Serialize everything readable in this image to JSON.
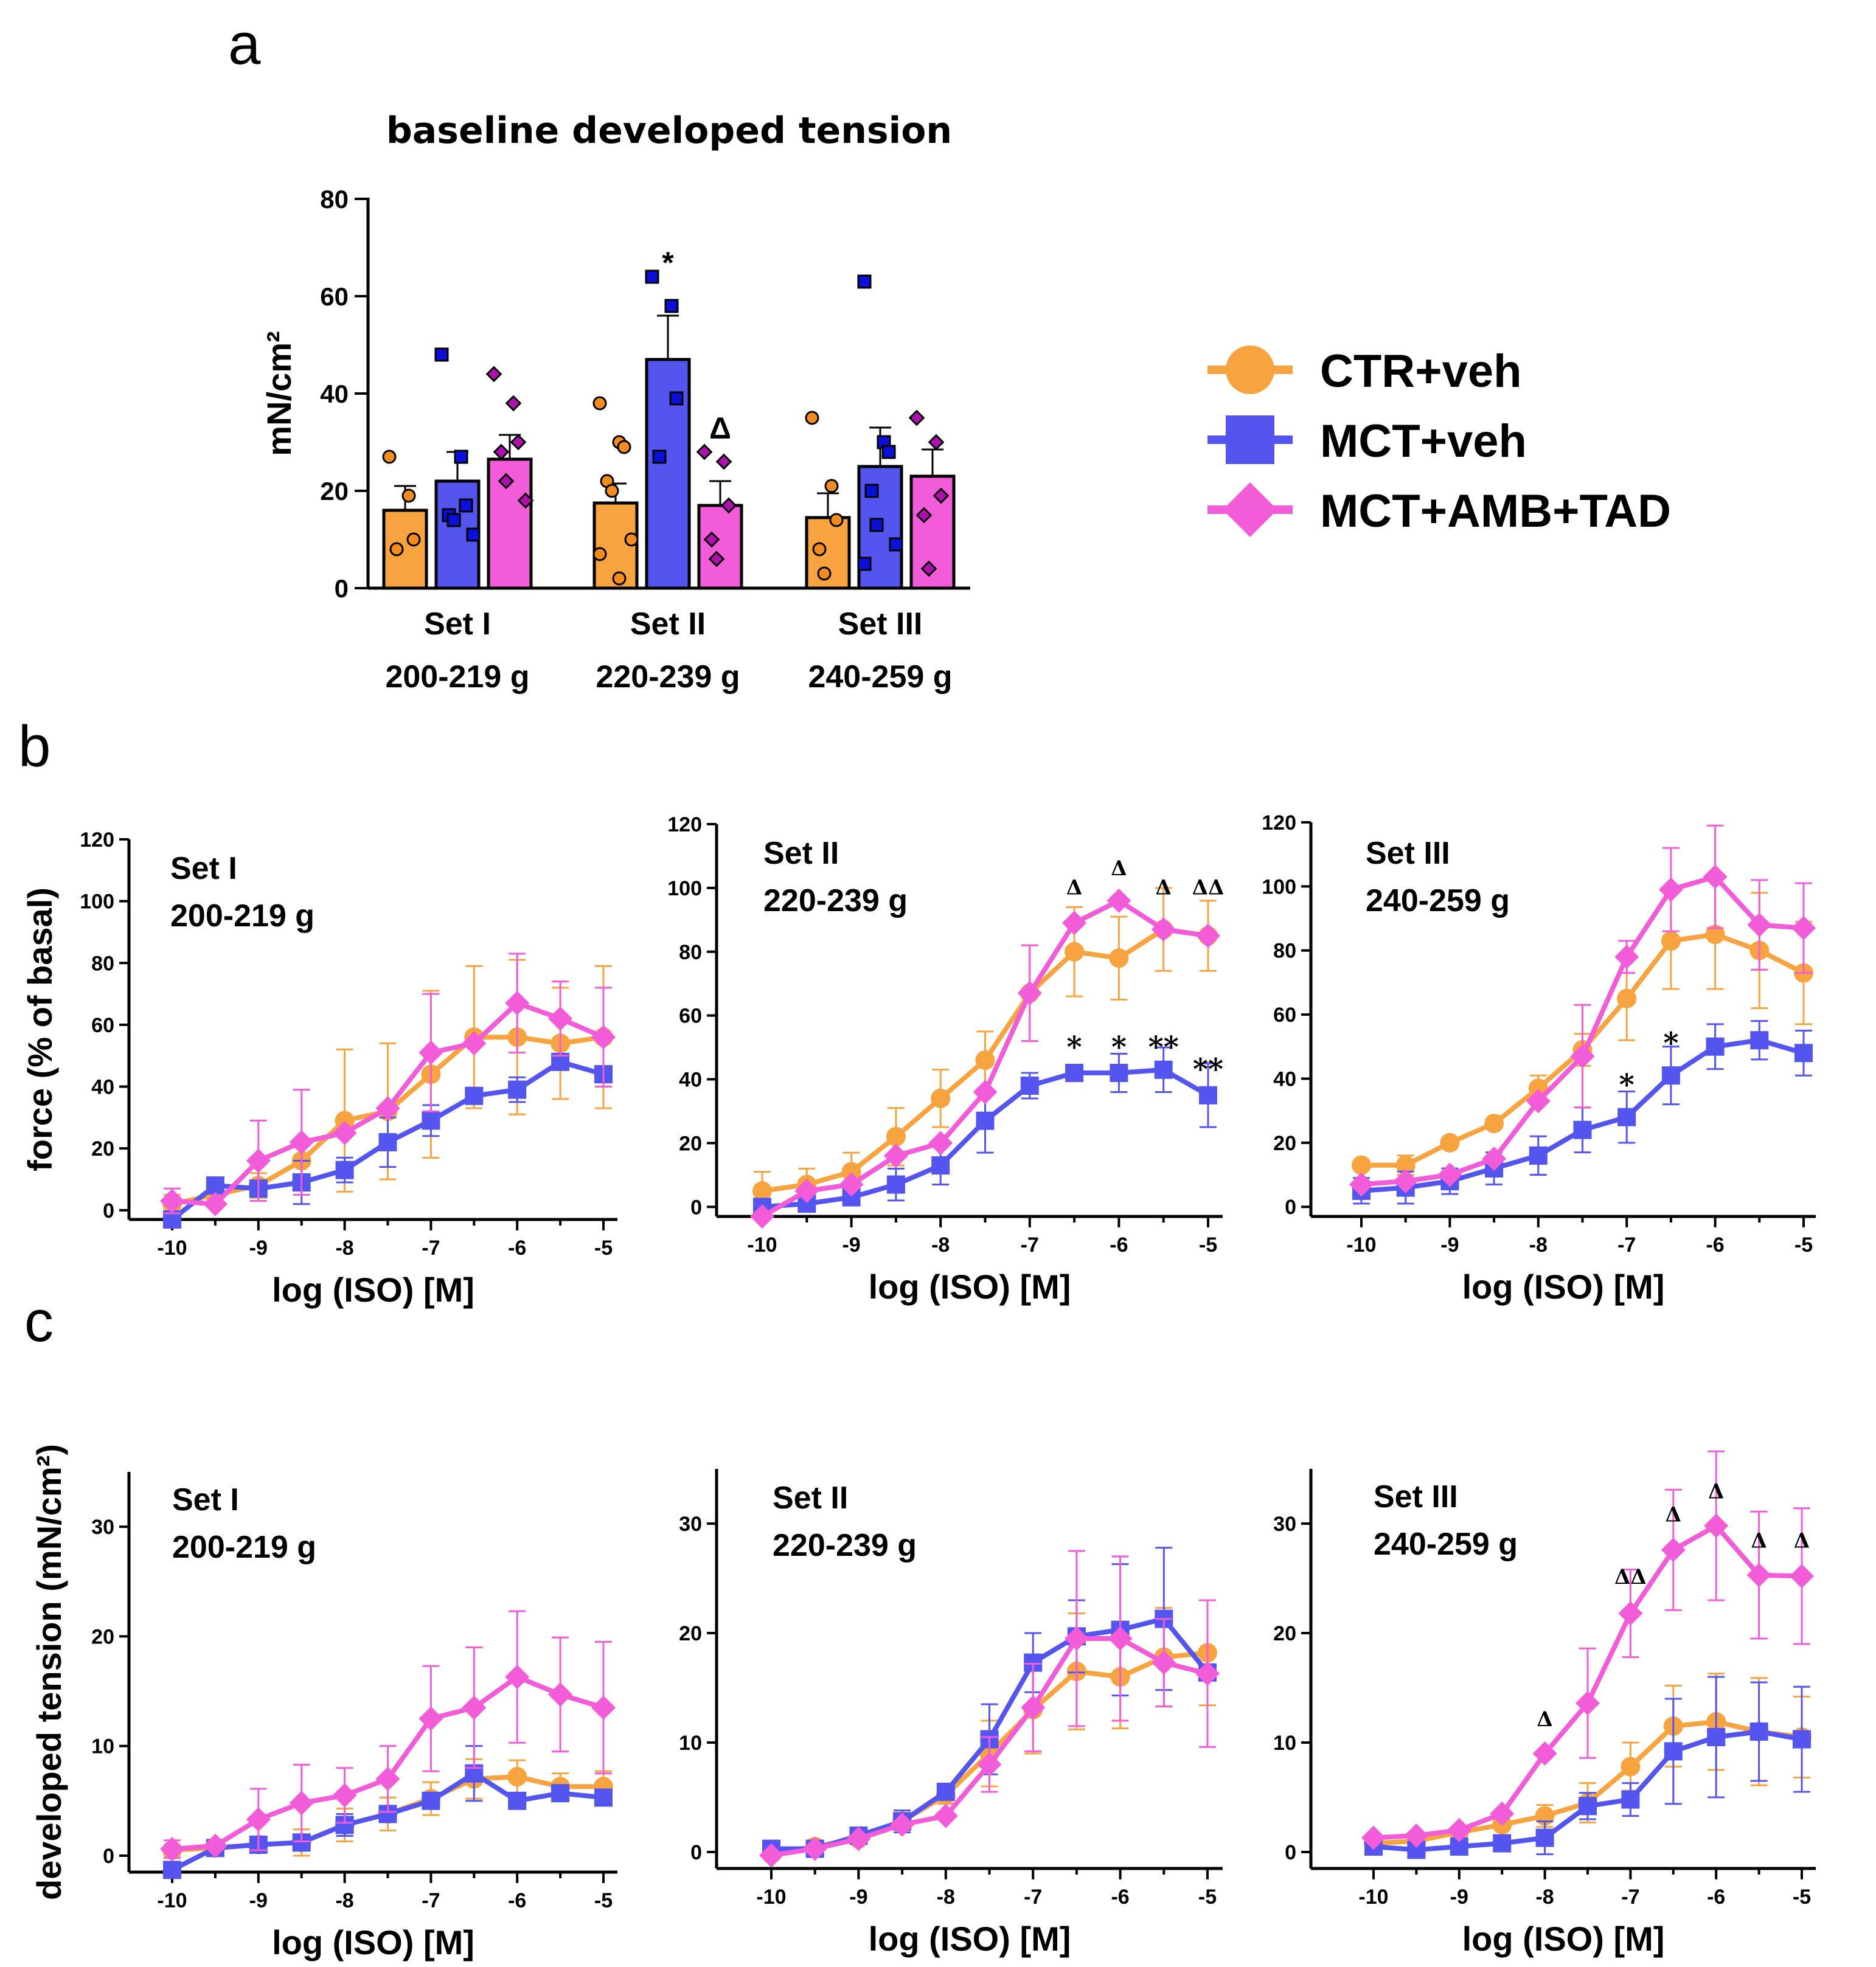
{
  "panels": {
    "a": "a",
    "b": "b",
    "c": "c"
  },
  "colors": {
    "ctr": "#F7A440",
    "mct": "#5454EE",
    "amb": "#F25CD9",
    "ctr_marker": "#F28C1E",
    "mct_marker": "#0A10D8",
    "amb_marker": "#B010B0"
  },
  "legend": [
    {
      "label": "CTR+veh",
      "marker": "circle",
      "color": "#F7A440"
    },
    {
      "label": "MCT+veh",
      "marker": "square",
      "color": "#5454EE"
    },
    {
      "label": "MCT+AMB+TAD",
      "marker": "diamond",
      "color": "#F25CD9"
    }
  ],
  "chart_data": [
    {
      "id": "a",
      "type": "bar",
      "title": "baseline developed tension",
      "ylabel": "mN/cm²",
      "ylim": [
        0,
        80
      ],
      "yticks": [
        0,
        20,
        40,
        60,
        80
      ],
      "groups": [
        {
          "line1": "Set I",
          "line2": "200-219 g"
        },
        {
          "line1": "Set II",
          "line2": "220-239 g"
        },
        {
          "line1": "Set III",
          "line2": "240-259 g"
        }
      ],
      "series": [
        {
          "name": "CTR+veh",
          "values": [
            16,
            17.5,
            14.5
          ],
          "sem": [
            5,
            4,
            5
          ],
          "points": [
            [
              27,
              19,
              10,
              8
            ],
            [
              38,
              30,
              29,
              22,
              20,
              10,
              7,
              2
            ],
            [
              35,
              21,
              14,
              8,
              3
            ]
          ]
        },
        {
          "name": "MCT+veh",
          "values": [
            22,
            47,
            25
          ],
          "sem": [
            6,
            9,
            8
          ],
          "points": [
            [
              48,
              27,
              17,
              15,
              14,
              11
            ],
            [
              64,
              58,
              39,
              27
            ],
            [
              63,
              30,
              28,
              20,
              13,
              9,
              5
            ]
          ]
        },
        {
          "name": "MCT+AMB+TAD",
          "values": [
            26.5,
            17,
            23
          ],
          "sem": [
            5,
            5,
            5.5
          ],
          "points": [
            [
              44,
              38,
              30,
              28,
              22,
              18
            ],
            [
              28,
              26,
              17,
              10,
              6
            ],
            [
              35,
              30,
              19,
              15,
              4
            ]
          ]
        }
      ],
      "annotations": [
        {
          "text": "*",
          "group": 1,
          "series": 1,
          "y": 67
        },
        {
          "text": "Δ",
          "group": 1,
          "series": 2,
          "y": 33
        }
      ]
    },
    {
      "id": "b-set1",
      "type": "line",
      "set": "Set I",
      "weight": "200-219 g",
      "ylabel": "force (% of basal)",
      "xlabel": "log (ISO) [M]",
      "ylim": [
        -3,
        120
      ],
      "yticks": [
        0,
        20,
        40,
        60,
        80,
        100,
        120
      ],
      "x": [
        -10,
        -9.5,
        -9,
        -8.5,
        -8,
        -7.5,
        -7,
        -6.5,
        -6,
        -5.5,
        -5
      ],
      "xticks": [
        -10,
        -9,
        -8,
        -7,
        -6,
        -5
      ],
      "series": [
        {
          "name": "CTR+veh",
          "values": [
            2,
            5,
            8,
            16,
            29,
            32,
            44,
            56,
            56,
            54,
            56
          ],
          "errors": [
            3,
            3,
            4,
            6,
            23,
            22,
            27,
            23,
            25,
            18,
            23
          ]
        },
        {
          "name": "MCT+veh",
          "values": [
            -3,
            8,
            7,
            9,
            13,
            22,
            29,
            37,
            39,
            48,
            44
          ],
          "errors": [
            0,
            0,
            0,
            7,
            4,
            8,
            5,
            0,
            4,
            0,
            0
          ]
        },
        {
          "name": "MCT+AMB+TAD",
          "values": [
            3,
            2,
            16,
            22,
            25,
            33,
            51,
            54,
            67,
            62,
            56
          ],
          "errors": [
            4,
            0,
            13,
            17,
            0,
            0,
            19,
            0,
            16,
            12,
            16
          ]
        }
      ],
      "annotations": []
    },
    {
      "id": "b-set2",
      "type": "line",
      "set": "Set II",
      "weight": "220-239 g",
      "xlabel": "log (ISO) [M]",
      "ylim": [
        -3,
        120
      ],
      "yticks": [
        0,
        20,
        40,
        60,
        80,
        100,
        120
      ],
      "x": [
        -10,
        -9.5,
        -9,
        -8.5,
        -8,
        -7.5,
        -7,
        -6.5,
        -6,
        -5.5,
        -5
      ],
      "xticks": [
        -10,
        -9,
        -8,
        -7,
        -6,
        -5
      ],
      "series": [
        {
          "name": "CTR+veh",
          "values": [
            5,
            7,
            11,
            22,
            34,
            46,
            67,
            80,
            78,
            87,
            85
          ],
          "errors": [
            6,
            5,
            6,
            9,
            9,
            9,
            15,
            14,
            13,
            13,
            11
          ]
        },
        {
          "name": "MCT+veh",
          "values": [
            0,
            1,
            3,
            7,
            13,
            27,
            38,
            42,
            42,
            43,
            35
          ],
          "errors": [
            0,
            0,
            0,
            5,
            6,
            10,
            4,
            0,
            6,
            7,
            10
          ]
        },
        {
          "name": "MCT+AMB+TAD",
          "values": [
            -3,
            5,
            7,
            16,
            20,
            36,
            67,
            89,
            96,
            87,
            85
          ],
          "errors": [
            0,
            0,
            0,
            0,
            0,
            0,
            15,
            0,
            0,
            0,
            0
          ]
        }
      ],
      "annotations": [
        {
          "text": "Δ",
          "x": -6.5,
          "y": 98
        },
        {
          "text": "Δ",
          "x": -6,
          "y": 104
        },
        {
          "text": "Δ",
          "x": -5.5,
          "y": 98
        },
        {
          "text": "ΔΔ",
          "x": -5,
          "y": 98
        },
        {
          "text": "*",
          "x": -6.5,
          "y": 47
        },
        {
          "text": "*",
          "x": -6,
          "y": 47
        },
        {
          "text": "**",
          "x": -5.5,
          "y": 47
        },
        {
          "text": "**",
          "x": -5,
          "y": 40
        }
      ]
    },
    {
      "id": "b-set3",
      "type": "line",
      "set": "Set III",
      "weight": "240-259 g",
      "xlabel": "log (ISO) [M]",
      "ylim": [
        -3,
        120
      ],
      "yticks": [
        0,
        20,
        40,
        60,
        80,
        100,
        120
      ],
      "x": [
        -10,
        -9.5,
        -9,
        -8.5,
        -8,
        -7.5,
        -7,
        -6.5,
        -6,
        -5.5,
        -5
      ],
      "xticks": [
        -10,
        -9,
        -8,
        -7,
        -6,
        -5
      ],
      "series": [
        {
          "name": "CTR+veh",
          "values": [
            13,
            13,
            20,
            26,
            37,
            49,
            65,
            83,
            85,
            80,
            73
          ],
          "errors": [
            0,
            3,
            0,
            0,
            4,
            5,
            13,
            15,
            17,
            18,
            16
          ]
        },
        {
          "name": "MCT+veh",
          "values": [
            5,
            6,
            8,
            12,
            16,
            24,
            28,
            41,
            50,
            52,
            48
          ],
          "errors": [
            4,
            5,
            4,
            5,
            6,
            7,
            8,
            9,
            7,
            6,
            7
          ]
        },
        {
          "name": "MCT+AMB+TAD",
          "values": [
            7,
            8,
            10,
            15,
            33,
            47,
            78,
            99,
            103,
            88,
            87
          ],
          "errors": [
            0,
            0,
            0,
            0,
            0,
            16,
            5,
            13,
            16,
            14,
            14
          ]
        }
      ],
      "annotations": [
        {
          "text": "*",
          "x": -7,
          "y": 35
        },
        {
          "text": "*",
          "x": -6.5,
          "y": 48
        }
      ]
    },
    {
      "id": "c-set1",
      "type": "line",
      "set": "Set I",
      "weight": "200-219 g",
      "ylabel": "developed tension (mN/cm²)",
      "xlabel": "log (ISO) [M]",
      "ylim": [
        -1.5,
        35
      ],
      "yticks": [
        0,
        10,
        20,
        30
      ],
      "x": [
        -10,
        -9.5,
        -9,
        -8.5,
        -8,
        -7.5,
        -7,
        -6.5,
        -6,
        -5.5,
        -5
      ],
      "xticks": [
        -10,
        -9,
        -8,
        -7,
        -6,
        -5
      ],
      "series": [
        {
          "name": "CTR+veh",
          "values": [
            0.5,
            0.7,
            1,
            1.2,
            2.8,
            3.8,
            5.2,
            7,
            7.2,
            6.3,
            6.3
          ],
          "errors": [
            0.5,
            0.5,
            0.5,
            1.2,
            1.5,
            1.5,
            1.5,
            1.8,
            1.5,
            1.2,
            1.4
          ]
        },
        {
          "name": "MCT+veh",
          "values": [
            -1.3,
            0.7,
            1,
            1.2,
            2.8,
            3.8,
            5,
            7.5,
            5,
            5.7,
            5.3
          ],
          "errors": [
            0,
            0,
            0,
            0,
            1,
            0,
            0,
            2.5,
            0,
            0,
            0
          ]
        },
        {
          "name": "MCT+AMB+TAD",
          "values": [
            0.6,
            0.9,
            3.3,
            4.8,
            5.5,
            7,
            12.5,
            13.5,
            16.3,
            14.7,
            13.5
          ],
          "errors": [
            0.8,
            0,
            2.8,
            3.5,
            2.5,
            3,
            4.8,
            5.5,
            6,
            5.2,
            6
          ]
        }
      ],
      "annotations": []
    },
    {
      "id": "c-set2",
      "type": "line",
      "set": "Set II",
      "weight": "220-239 g",
      "xlabel": "log (ISO) [M]",
      "ylim": [
        -1.5,
        35
      ],
      "yticks": [
        0,
        10,
        20,
        30
      ],
      "x": [
        -10,
        -9.5,
        -9,
        -8.5,
        -8,
        -7.5,
        -7,
        -6.5,
        -6,
        -5.5,
        -5
      ],
      "xticks": [
        -10,
        -9,
        -8,
        -7,
        -6,
        -5
      ],
      "series": [
        {
          "name": "CTR+veh",
          "values": [
            -0.2,
            0.5,
            1.2,
            2.8,
            5.2,
            9,
            13,
            16.5,
            16,
            17.8,
            18.2
          ],
          "errors": [
            0,
            0,
            0,
            0.8,
            0.8,
            3,
            4,
            5.3,
            4.7,
            4.5,
            4.8
          ]
        },
        {
          "name": "MCT+veh",
          "values": [
            0.3,
            0.3,
            1.5,
            2.8,
            5.5,
            10.3,
            17.3,
            19.7,
            20.3,
            21.3,
            16.4
          ],
          "errors": [
            0,
            0,
            0,
            1,
            0,
            3.2,
            2.7,
            3.3,
            6,
            6.5,
            0
          ]
        },
        {
          "name": "MCT+AMB+TAD",
          "values": [
            -0.3,
            0.3,
            1.2,
            2.5,
            3.3,
            8,
            13.2,
            19.5,
            19.5,
            17.3,
            16.3
          ],
          "errors": [
            0,
            0,
            0,
            0,
            0,
            2.5,
            4,
            8,
            7.5,
            4,
            6.7
          ]
        }
      ],
      "annotations": []
    },
    {
      "id": "c-set3",
      "type": "line",
      "set": "Set III",
      "weight": "240-259 g",
      "xlabel": "log (ISO) [M]",
      "ylim": [
        -1.5,
        35
      ],
      "yticks": [
        0,
        10,
        20,
        30
      ],
      "x": [
        -10,
        -9.5,
        -9,
        -8.5,
        -8,
        -7.5,
        -7,
        -6.5,
        -6,
        -5.5,
        -5
      ],
      "xticks": [
        -10,
        -9,
        -8,
        -7,
        -6,
        -5
      ],
      "series": [
        {
          "name": "CTR+veh",
          "values": [
            0.8,
            1,
            1.8,
            2.5,
            3.3,
            4.5,
            7.8,
            11.5,
            11.9,
            11,
            10.5
          ],
          "errors": [
            0,
            0,
            0,
            0,
            1,
            1.8,
            2.2,
            3.7,
            4.4,
            4.9,
            3.7
          ]
        },
        {
          "name": "MCT+veh",
          "values": [
            0.5,
            0.2,
            0.5,
            0.8,
            1.3,
            4.2,
            4.8,
            9.2,
            10.5,
            11,
            10.3
          ],
          "errors": [
            0,
            0,
            0,
            0,
            1.5,
            1.2,
            1.5,
            4.8,
            5.5,
            4.5,
            4.8
          ]
        },
        {
          "name": "MCT+AMB+TAD",
          "values": [
            1.3,
            1.5,
            2,
            3.5,
            9,
            13.6,
            21.8,
            27.6,
            29.8,
            25.3,
            25.2
          ],
          "errors": [
            0,
            0,
            0,
            0,
            0,
            5,
            4,
            5.5,
            6.8,
            5.8,
            6.2
          ]
        }
      ],
      "annotations": [
        {
          "text": "Δ",
          "x": -8,
          "y": 11.5
        },
        {
          "text": "ΔΔ",
          "x": -7,
          "y": 24.5
        },
        {
          "text": "Δ",
          "x": -6.5,
          "y": 30.2
        },
        {
          "text": "Δ",
          "x": -6,
          "y": 32.3
        },
        {
          "text": "Δ",
          "x": -5.5,
          "y": 27.8
        },
        {
          "text": "Δ",
          "x": -5,
          "y": 27.8
        }
      ]
    }
  ]
}
